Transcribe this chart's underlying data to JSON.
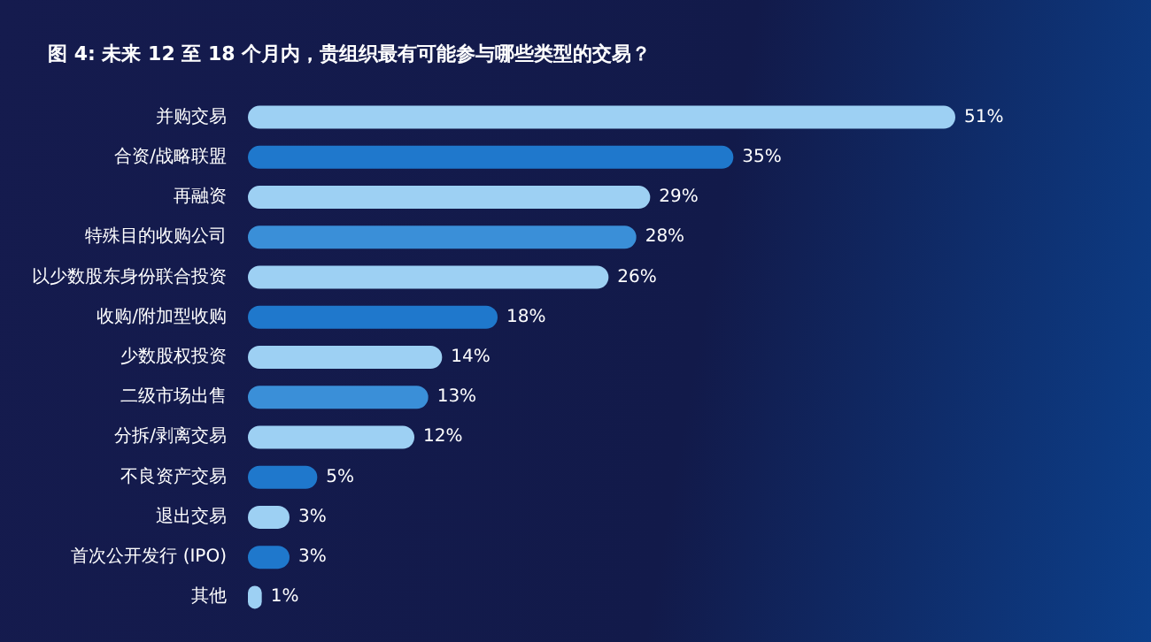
{
  "chart_data": {
    "type": "bar",
    "orientation": "horizontal",
    "title": "图 4: 未来 12 至 18 个月内，贵组织最有可能参与哪些类型的交易？",
    "categories": [
      "并购交易",
      "合资/战略联盟",
      "再融资",
      "特殊目的收购公司",
      "以少数股东身份联合投资",
      "收购/附加型收购",
      "少数股权投资",
      "二级市场出售",
      "分拆/剥离交易",
      "不良资产交易",
      "退出交易",
      "首次公开发行 (IPO)",
      "其他"
    ],
    "values": [
      51,
      35,
      29,
      28,
      26,
      18,
      14,
      13,
      12,
      5,
      3,
      3,
      1
    ],
    "colors": [
      "#9dd0f3",
      "#1f78cc",
      "#9dd0f3",
      "#3a8fd8",
      "#9dd0f3",
      "#1f78cc",
      "#9dd0f3",
      "#3a8fd8",
      "#9dd0f3",
      "#1f78cc",
      "#9dd0f3",
      "#1f78cc",
      "#9dd0f3"
    ],
    "value_labels": [
      "51%",
      "35%",
      "29%",
      "28%",
      "26%",
      "18%",
      "14%",
      "13%",
      "12%",
      "5%",
      "3%",
      "3%",
      "1%"
    ]
  }
}
